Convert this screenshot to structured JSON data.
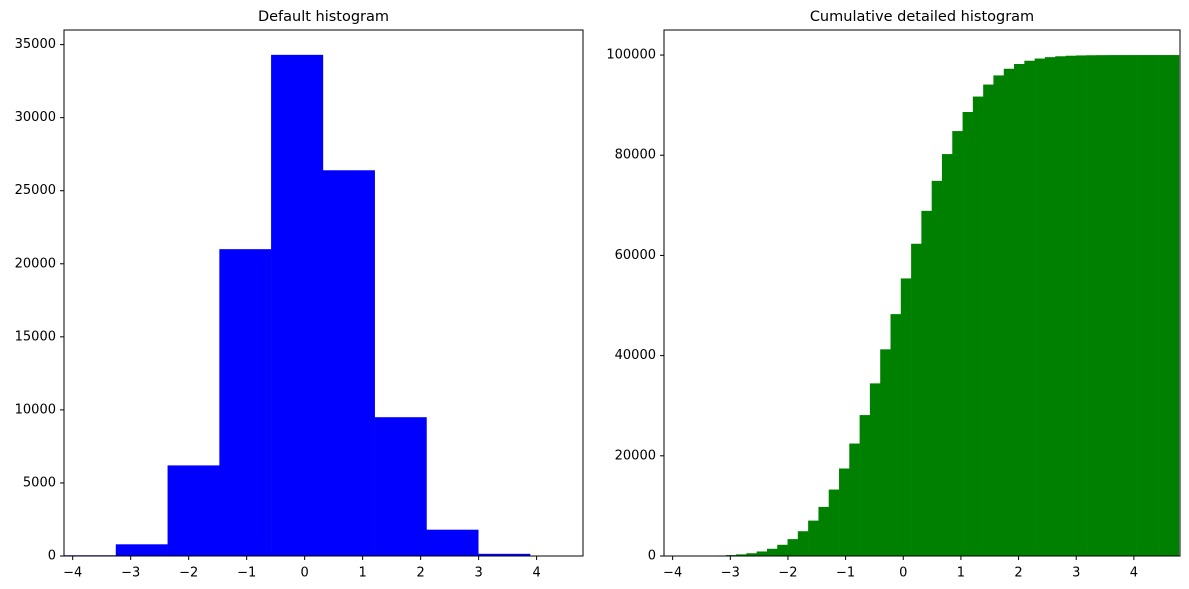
{
  "chart_data": [
    {
      "type": "histogram",
      "title": "Default histogram",
      "color": "#0000ff",
      "bins": [
        -4.15,
        -3.257,
        -2.364,
        -1.471,
        -0.579,
        0.314,
        1.207,
        2.1,
        2.993,
        3.886,
        4.78
      ],
      "values": [
        50,
        800,
        6200,
        21000,
        34300,
        26400,
        9500,
        1800,
        150,
        5
      ],
      "xlim": [
        -4.15,
        4.8
      ],
      "ylim": [
        0,
        36000
      ],
      "xticks": [
        {
          "value": -4,
          "label": "−4"
        },
        {
          "value": -3,
          "label": "−3"
        },
        {
          "value": -2,
          "label": "−2"
        },
        {
          "value": -1,
          "label": "−1"
        },
        0,
        1,
        2,
        3,
        4
      ],
      "yticks": [
        0,
        5000,
        10000,
        15000,
        20000,
        25000,
        30000,
        35000
      ]
    },
    {
      "type": "histogram",
      "title": "Cumulative detailed histogram",
      "color": "#008000",
      "cumulative": true,
      "bins": [
        -4.15,
        -3.971,
        -3.793,
        -3.614,
        -3.436,
        -3.257,
        -3.079,
        -2.9,
        -2.721,
        -2.543,
        -2.364,
        -2.186,
        -2.007,
        -1.829,
        -1.65,
        -1.471,
        -1.293,
        -1.114,
        -0.936,
        -0.757,
        -0.579,
        -0.4,
        -0.221,
        -0.043,
        0.136,
        0.314,
        0.493,
        0.671,
        0.85,
        1.029,
        1.207,
        1.386,
        1.564,
        1.743,
        1.921,
        2.1,
        2.279,
        2.457,
        2.636,
        2.814,
        2.993,
        3.171,
        3.35,
        3.529,
        3.707,
        3.886,
        4.064,
        4.243,
        4.421,
        4.6,
        4.78
      ],
      "values": [
        4,
        7,
        15,
        30,
        56,
        104,
        187,
        325,
        550,
        904,
        1441,
        2237,
        3370,
        4948,
        7064,
        9801,
        13264,
        17465,
        22450,
        28130,
        34458,
        41254,
        48285,
        55409,
        62330,
        68900,
        74890,
        80232,
        84825,
        88628,
        91712,
        94110,
        95934,
        97264,
        98214,
        98866,
        99300,
        99580,
        99755,
        99862,
        99924,
        99960,
        99979,
        99990,
        99995,
        99998,
        99999,
        100000,
        100000,
        100000
      ],
      "xlim": [
        -4.15,
        4.8
      ],
      "ylim": [
        0,
        105000
      ],
      "xticks": [
        {
          "value": -4,
          "label": "−4"
        },
        {
          "value": -3,
          "label": "−3"
        },
        {
          "value": -2,
          "label": "−2"
        },
        {
          "value": -1,
          "label": "−1"
        },
        0,
        1,
        2,
        3,
        4
      ],
      "yticks": [
        0,
        20000,
        40000,
        60000,
        80000,
        100000
      ]
    }
  ]
}
